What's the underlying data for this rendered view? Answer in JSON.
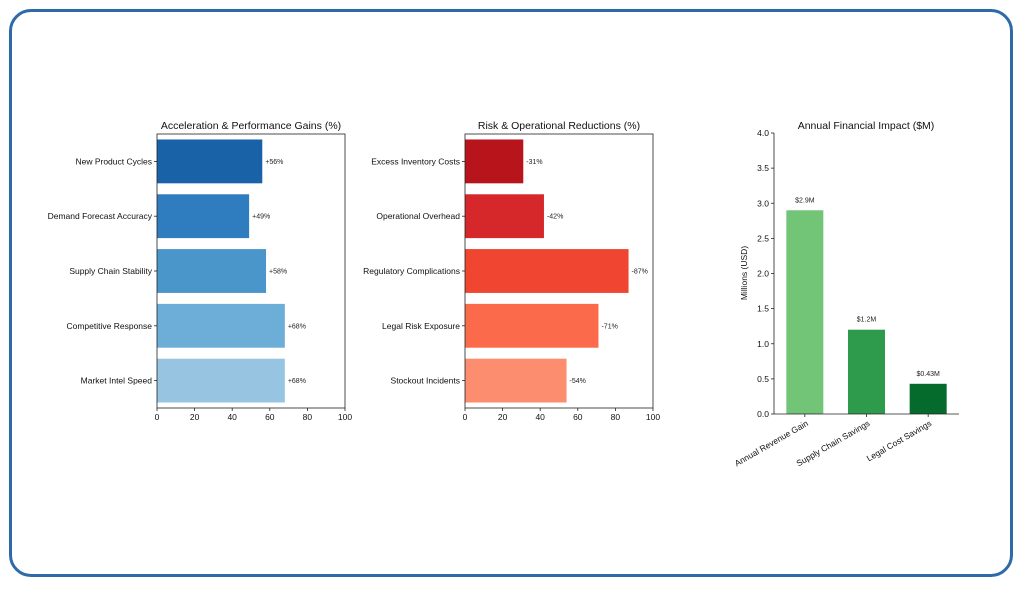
{
  "chart_data": [
    {
      "type": "bar",
      "orientation": "horizontal",
      "title": "Acceleration & Performance Gains (%)",
      "categories": [
        "New Product Cycles",
        "Demand Forecast Accuracy",
        "Supply Chain Stability",
        "Competitive Response",
        "Market Intel Speed"
      ],
      "values": [
        56,
        49,
        58,
        68,
        68
      ],
      "labels": [
        "+56%",
        "+49%",
        "+58%",
        "+68%",
        "+68%"
      ],
      "colors": [
        "#1a62a8",
        "#2f7dbf",
        "#4a95c9",
        "#6daed9",
        "#97c4e0"
      ],
      "xlim": [
        0,
        100
      ],
      "xticks": [
        "0",
        "20",
        "40",
        "60",
        "80",
        "100"
      ],
      "grid": false
    },
    {
      "type": "bar",
      "orientation": "horizontal",
      "title": "Risk & Operational Reductions (%)",
      "categories": [
        "Excess Inventory Costs",
        "Operational Overhead",
        "Regulatory Complications",
        "Legal Risk Exposure",
        "Stockout Incidents"
      ],
      "values": [
        31,
        42,
        87,
        71,
        54
      ],
      "labels": [
        "-31%",
        "-42%",
        "-87%",
        "-71%",
        "-54%"
      ],
      "colors": [
        "#b8141c",
        "#d6272a",
        "#ef4531",
        "#fb6b4b",
        "#fc8e6f"
      ],
      "xlim": [
        0,
        100
      ],
      "xticks": [
        "0",
        "20",
        "40",
        "60",
        "80",
        "100"
      ],
      "grid": false
    },
    {
      "type": "bar",
      "orientation": "vertical",
      "title": "Annual Financial Impact ($M)",
      "ylabel": "Millions (USD)",
      "categories": [
        "Annual Revenue Gain",
        "Supply Chain Savings",
        "Legal Cost Savings"
      ],
      "values": [
        2.9,
        1.2,
        0.43
      ],
      "labels": [
        "$2.9M",
        "$1.2M",
        "$0.43M"
      ],
      "colors": [
        "#72c476",
        "#2e9a4b",
        "#046b2d"
      ],
      "ylim": [
        0,
        4
      ],
      "yticks": [
        "0.0",
        "0.5",
        "1.0",
        "1.5",
        "2.0",
        "2.5",
        "3.0",
        "3.5",
        "4.0"
      ],
      "grid": false
    }
  ]
}
